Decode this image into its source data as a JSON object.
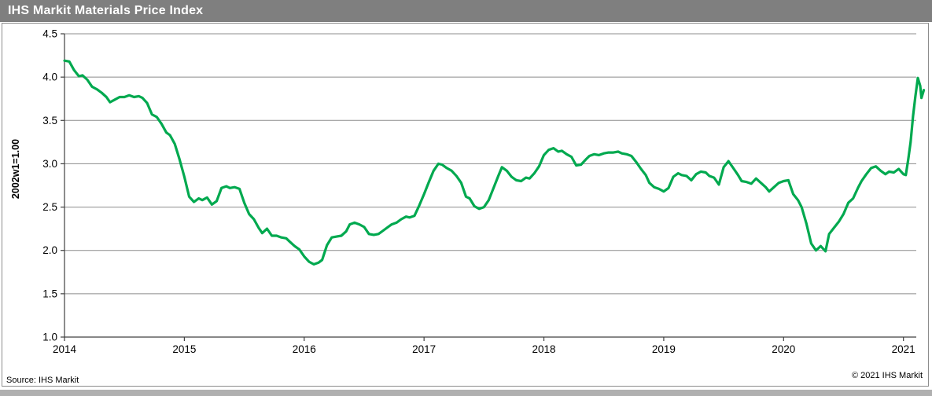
{
  "header": {
    "title": "IHS Markit Materials Price Index"
  },
  "footer": {
    "source": "Source: IHS Markit",
    "copyright": "© 2021  IHS Markit"
  },
  "colors": {
    "line_green": "#00a94f",
    "titlebar_gray": "#7f7f7f",
    "bottombar_gray": "#b0b0b0",
    "gridline_gray": "#8c8c8c",
    "axis_dark": "#404040"
  },
  "chart_data": {
    "type": "line",
    "title": "IHS Markit Materials Price Index",
    "ylabel": "2002w1=1.00",
    "xlabel": "",
    "ylim": [
      1.0,
      4.5
    ],
    "xlim": [
      2014.0,
      2021.107
    ],
    "y_ticks": [
      "4.5",
      "4.0",
      "3.5",
      "3.0",
      "2.5",
      "2.0",
      "1.5",
      "1.0"
    ],
    "y_tick_values": [
      4.5,
      4.0,
      3.5,
      3.0,
      2.5,
      2.0,
      1.5,
      1.0
    ],
    "x_ticks": [
      "2014",
      "2015",
      "2016",
      "2017",
      "2018",
      "2019",
      "2020",
      "2021"
    ],
    "x_tick_values": [
      2014,
      2015,
      2016,
      2017,
      2018,
      2019,
      2020,
      2021
    ],
    "grid": "horizontal-only",
    "legend": "none",
    "series": [
      {
        "name": "IHS Markit Materials Price Index (weekly)",
        "points": [
          [
            2014.0,
            4.19
          ],
          [
            2014.04,
            4.18
          ],
          [
            2014.08,
            4.08
          ],
          [
            2014.12,
            4.01
          ],
          [
            2014.15,
            4.02
          ],
          [
            2014.19,
            3.97
          ],
          [
            2014.23,
            3.89
          ],
          [
            2014.27,
            3.86
          ],
          [
            2014.31,
            3.82
          ],
          [
            2014.35,
            3.77
          ],
          [
            2014.38,
            3.71
          ],
          [
            2014.42,
            3.74
          ],
          [
            2014.46,
            3.77
          ],
          [
            2014.5,
            3.77
          ],
          [
            2014.54,
            3.79
          ],
          [
            2014.58,
            3.77
          ],
          [
            2014.62,
            3.78
          ],
          [
            2014.65,
            3.76
          ],
          [
            2014.69,
            3.7
          ],
          [
            2014.73,
            3.57
          ],
          [
            2014.77,
            3.54
          ],
          [
            2014.81,
            3.46
          ],
          [
            2014.85,
            3.36
          ],
          [
            2014.88,
            3.33
          ],
          [
            2014.92,
            3.23
          ],
          [
            2014.96,
            3.05
          ],
          [
            2015.0,
            2.85
          ],
          [
            2015.04,
            2.62
          ],
          [
            2015.08,
            2.56
          ],
          [
            2015.12,
            2.6
          ],
          [
            2015.15,
            2.58
          ],
          [
            2015.19,
            2.61
          ],
          [
            2015.23,
            2.53
          ],
          [
            2015.27,
            2.57
          ],
          [
            2015.31,
            2.72
          ],
          [
            2015.35,
            2.74
          ],
          [
            2015.38,
            2.72
          ],
          [
            2015.42,
            2.73
          ],
          [
            2015.46,
            2.71
          ],
          [
            2015.5,
            2.55
          ],
          [
            2015.54,
            2.42
          ],
          [
            2015.58,
            2.36
          ],
          [
            2015.62,
            2.26
          ],
          [
            2015.65,
            2.2
          ],
          [
            2015.69,
            2.25
          ],
          [
            2015.73,
            2.17
          ],
          [
            2015.77,
            2.17
          ],
          [
            2015.81,
            2.15
          ],
          [
            2015.85,
            2.14
          ],
          [
            2015.88,
            2.1
          ],
          [
            2015.92,
            2.05
          ],
          [
            2015.96,
            2.01
          ],
          [
            2016.0,
            1.93
          ],
          [
            2016.04,
            1.87
          ],
          [
            2016.08,
            1.84
          ],
          [
            2016.12,
            1.86
          ],
          [
            2016.15,
            1.89
          ],
          [
            2016.19,
            2.06
          ],
          [
            2016.23,
            2.15
          ],
          [
            2016.27,
            2.16
          ],
          [
            2016.31,
            2.17
          ],
          [
            2016.35,
            2.22
          ],
          [
            2016.38,
            2.3
          ],
          [
            2016.42,
            2.32
          ],
          [
            2016.46,
            2.3
          ],
          [
            2016.5,
            2.27
          ],
          [
            2016.54,
            2.19
          ],
          [
            2016.58,
            2.18
          ],
          [
            2016.62,
            2.19
          ],
          [
            2016.65,
            2.22
          ],
          [
            2016.69,
            2.26
          ],
          [
            2016.73,
            2.3
          ],
          [
            2016.77,
            2.32
          ],
          [
            2016.81,
            2.36
          ],
          [
            2016.85,
            2.39
          ],
          [
            2016.88,
            2.38
          ],
          [
            2016.92,
            2.4
          ],
          [
            2016.96,
            2.52
          ],
          [
            2017.0,
            2.65
          ],
          [
            2017.04,
            2.79
          ],
          [
            2017.08,
            2.92
          ],
          [
            2017.12,
            3.0
          ],
          [
            2017.15,
            2.99
          ],
          [
            2017.19,
            2.95
          ],
          [
            2017.23,
            2.92
          ],
          [
            2017.27,
            2.86
          ],
          [
            2017.31,
            2.78
          ],
          [
            2017.35,
            2.62
          ],
          [
            2017.38,
            2.6
          ],
          [
            2017.42,
            2.51
          ],
          [
            2017.46,
            2.48
          ],
          [
            2017.5,
            2.5
          ],
          [
            2017.54,
            2.58
          ],
          [
            2017.58,
            2.72
          ],
          [
            2017.62,
            2.86
          ],
          [
            2017.65,
            2.96
          ],
          [
            2017.69,
            2.92
          ],
          [
            2017.73,
            2.85
          ],
          [
            2017.77,
            2.81
          ],
          [
            2017.81,
            2.8
          ],
          [
            2017.85,
            2.84
          ],
          [
            2017.88,
            2.83
          ],
          [
            2017.92,
            2.89
          ],
          [
            2017.96,
            2.97
          ],
          [
            2018.0,
            3.1
          ],
          [
            2018.04,
            3.16
          ],
          [
            2018.08,
            3.18
          ],
          [
            2018.12,
            3.14
          ],
          [
            2018.15,
            3.15
          ],
          [
            2018.19,
            3.11
          ],
          [
            2018.23,
            3.08
          ],
          [
            2018.27,
            2.98
          ],
          [
            2018.31,
            2.99
          ],
          [
            2018.35,
            3.05
          ],
          [
            2018.38,
            3.09
          ],
          [
            2018.42,
            3.11
          ],
          [
            2018.46,
            3.1
          ],
          [
            2018.5,
            3.12
          ],
          [
            2018.54,
            3.13
          ],
          [
            2018.58,
            3.13
          ],
          [
            2018.62,
            3.14
          ],
          [
            2018.65,
            3.12
          ],
          [
            2018.69,
            3.11
          ],
          [
            2018.73,
            3.09
          ],
          [
            2018.77,
            3.02
          ],
          [
            2018.81,
            2.94
          ],
          [
            2018.85,
            2.87
          ],
          [
            2018.88,
            2.78
          ],
          [
            2018.92,
            2.73
          ],
          [
            2018.96,
            2.71
          ],
          [
            2019.0,
            2.68
          ],
          [
            2019.04,
            2.72
          ],
          [
            2019.08,
            2.85
          ],
          [
            2019.12,
            2.89
          ],
          [
            2019.15,
            2.87
          ],
          [
            2019.19,
            2.86
          ],
          [
            2019.23,
            2.81
          ],
          [
            2019.27,
            2.88
          ],
          [
            2019.31,
            2.91
          ],
          [
            2019.35,
            2.9
          ],
          [
            2019.38,
            2.86
          ],
          [
            2019.42,
            2.84
          ],
          [
            2019.46,
            2.76
          ],
          [
            2019.5,
            2.96
          ],
          [
            2019.54,
            3.03
          ],
          [
            2019.58,
            2.95
          ],
          [
            2019.62,
            2.87
          ],
          [
            2019.65,
            2.8
          ],
          [
            2019.69,
            2.79
          ],
          [
            2019.73,
            2.77
          ],
          [
            2019.77,
            2.83
          ],
          [
            2019.81,
            2.78
          ],
          [
            2019.85,
            2.73
          ],
          [
            2019.88,
            2.68
          ],
          [
            2019.92,
            2.73
          ],
          [
            2019.96,
            2.78
          ],
          [
            2020.0,
            2.8
          ],
          [
            2020.04,
            2.81
          ],
          [
            2020.08,
            2.65
          ],
          [
            2020.12,
            2.58
          ],
          [
            2020.15,
            2.5
          ],
          [
            2020.19,
            2.31
          ],
          [
            2020.23,
            2.08
          ],
          [
            2020.27,
            2.0
          ],
          [
            2020.31,
            2.05
          ],
          [
            2020.35,
            1.99
          ],
          [
            2020.38,
            2.19
          ],
          [
            2020.42,
            2.26
          ],
          [
            2020.46,
            2.33
          ],
          [
            2020.5,
            2.42
          ],
          [
            2020.54,
            2.55
          ],
          [
            2020.58,
            2.6
          ],
          [
            2020.62,
            2.72
          ],
          [
            2020.65,
            2.8
          ],
          [
            2020.69,
            2.88
          ],
          [
            2020.73,
            2.95
          ],
          [
            2020.77,
            2.97
          ],
          [
            2020.81,
            2.92
          ],
          [
            2020.85,
            2.88
          ],
          [
            2020.88,
            2.91
          ],
          [
            2020.92,
            2.9
          ],
          [
            2020.96,
            2.94
          ],
          [
            2021.0,
            2.88
          ],
          [
            2021.02,
            2.87
          ],
          [
            2021.04,
            3.05
          ],
          [
            2021.06,
            3.25
          ],
          [
            2021.08,
            3.55
          ],
          [
            2021.1,
            3.78
          ],
          [
            2021.12,
            3.99
          ],
          [
            2021.14,
            3.9
          ],
          [
            2021.15,
            3.76
          ],
          [
            2021.17,
            3.85
          ]
        ]
      }
    ]
  }
}
